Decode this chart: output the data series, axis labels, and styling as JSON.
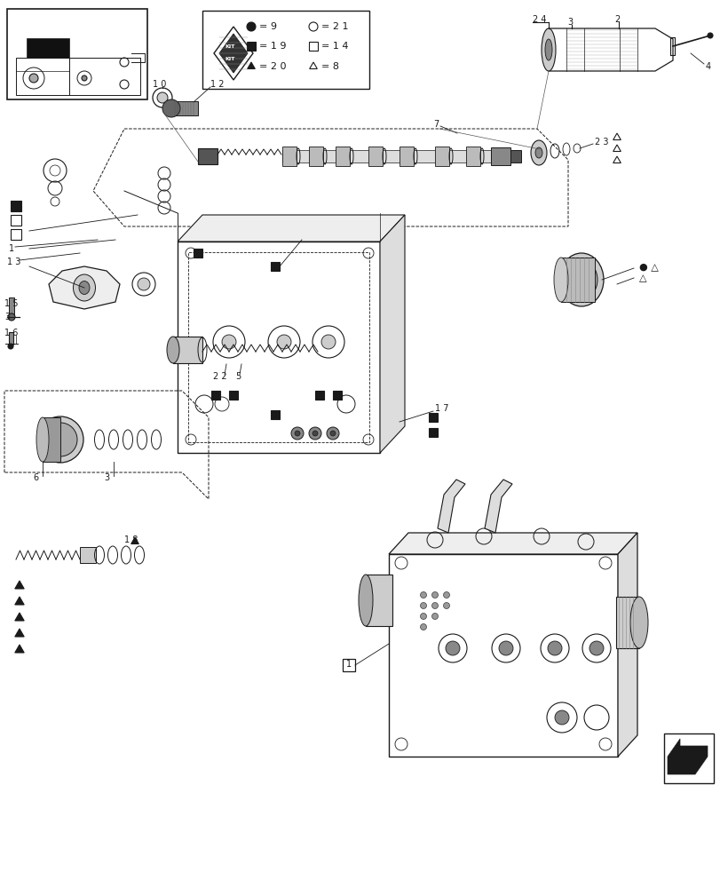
{
  "bg_color": "#ffffff",
  "line_color": "#1a1a1a",
  "figsize": [
    8.12,
    10.0
  ],
  "dpi": 100
}
